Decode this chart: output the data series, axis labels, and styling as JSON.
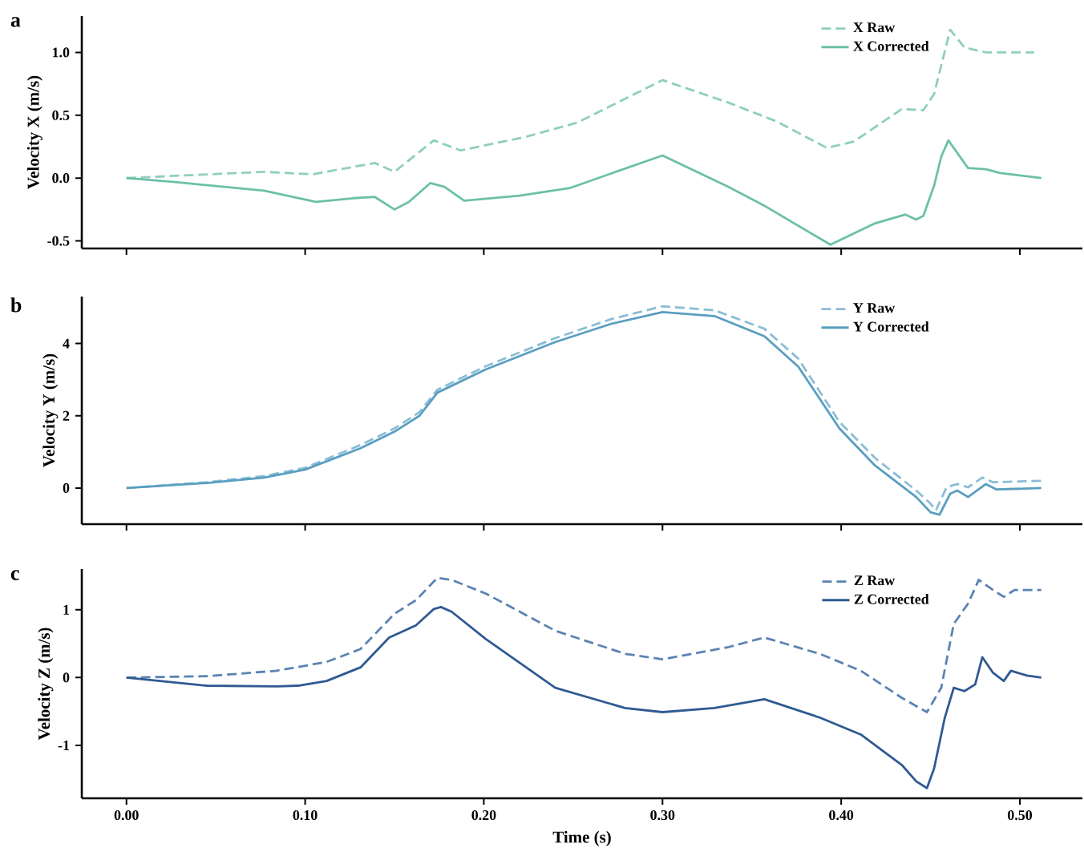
{
  "chart_data": [
    {
      "type": "line",
      "ylabel": "Velocity X (m/s)",
      "annotations": [
        "a"
      ],
      "legend": "top right",
      "tick_labels": "y",
      "xlim": [
        -0.025,
        0.535
      ],
      "ylim": [
        -0.56,
        1.29
      ],
      "xticks": [
        {
          "value": 0,
          "label": null
        },
        {
          "value": 0.1,
          "label": null
        },
        {
          "value": 0.2,
          "label": null
        },
        {
          "value": 0.3,
          "label": null
        },
        {
          "value": 0.4,
          "label": null
        },
        {
          "value": 0.5,
          "label": null
        }
      ],
      "yticks": [
        {
          "value": -0.5,
          "label": "-0.5"
        },
        {
          "value": 0,
          "label": "0.0"
        },
        {
          "value": 0.5,
          "label": "0.5"
        },
        {
          "value": 1,
          "label": "1.0"
        }
      ],
      "series": [
        {
          "name": "X Raw",
          "color": "#8fcfbd",
          "line_style": "dashed",
          "x": [
            0,
            0.077,
            0.104,
            0.139,
            0.15,
            0.172,
            0.187,
            0.224,
            0.252,
            0.3,
            0.337,
            0.364,
            0.392,
            0.407,
            0.434,
            0.446,
            0.452,
            0.461,
            0.469,
            0.481,
            0.508
          ],
          "values": [
            0,
            0.05,
            0.03,
            0.12,
            0.05,
            0.3,
            0.22,
            0.33,
            0.44,
            0.78,
            0.6,
            0.45,
            0.24,
            0.29,
            0.55,
            0.54,
            0.67,
            1.18,
            1.04,
            1.0,
            1.0
          ]
        },
        {
          "name": "X Corrected",
          "color": "#6cc0a8",
          "line_style": "solid",
          "x": [
            0,
            0.026,
            0.077,
            0.106,
            0.127,
            0.139,
            0.15,
            0.158,
            0.17,
            0.178,
            0.189,
            0.22,
            0.248,
            0.3,
            0.337,
            0.357,
            0.394,
            0.419,
            0.436,
            0.442,
            0.446,
            0.452,
            0.456,
            0.46,
            0.468,
            0.471,
            0.481,
            0.489,
            0.512
          ],
          "values": [
            0,
            -0.03,
            -0.1,
            -0.19,
            -0.16,
            -0.15,
            -0.25,
            -0.19,
            -0.04,
            -0.07,
            -0.18,
            -0.14,
            -0.08,
            0.18,
            -0.07,
            -0.22,
            -0.53,
            -0.36,
            -0.29,
            -0.33,
            -0.3,
            -0.06,
            0.17,
            0.3,
            0.14,
            0.08,
            0.07,
            0.04,
            0.0
          ]
        }
      ]
    },
    {
      "type": "line",
      "ylabel": "Velocity Y (m/s)",
      "annotations": [
        "b"
      ],
      "legend": "top right",
      "tick_labels": "y",
      "xlim": [
        -0.025,
        0.535
      ],
      "ylim": [
        -1,
        5.3
      ],
      "xticks": [
        {
          "value": 0,
          "label": null
        },
        {
          "value": 0.1,
          "label": null
        },
        {
          "value": 0.2,
          "label": null
        },
        {
          "value": 0.3,
          "label": null
        },
        {
          "value": 0.4,
          "label": null
        },
        {
          "value": 0.5,
          "label": null
        }
      ],
      "yticks": [
        0,
        2,
        4
      ],
      "series": [
        {
          "name": "Y Raw",
          "color": "#8bbdd6",
          "line_style": "dashed",
          "x": [
            0,
            0.045,
            0.077,
            0.1,
            0.131,
            0.15,
            0.164,
            0.174,
            0.201,
            0.24,
            0.271,
            0.3,
            0.329,
            0.357,
            0.376,
            0.399,
            0.419,
            0.442,
            0.45,
            0.453,
            0.459,
            0.465,
            0.471,
            0.479,
            0.485,
            0.512
          ],
          "values": [
            0,
            0.16,
            0.33,
            0.56,
            1.19,
            1.65,
            2.1,
            2.72,
            3.37,
            4.15,
            4.67,
            5.03,
            4.92,
            4.41,
            3.58,
            1.83,
            0.83,
            -0.07,
            -0.43,
            -0.62,
            0.02,
            0.11,
            0.02,
            0.29,
            0.16,
            0.2
          ]
        },
        {
          "name": "Y Corrected",
          "color": "#5a9ec0",
          "line_style": "solid",
          "x": [
            0,
            0.045,
            0.077,
            0.1,
            0.131,
            0.15,
            0.164,
            0.174,
            0.201,
            0.24,
            0.271,
            0.3,
            0.329,
            0.357,
            0.376,
            0.399,
            0.419,
            0.442,
            0.45,
            0.455,
            0.461,
            0.465,
            0.471,
            0.481,
            0.487,
            0.512
          ],
          "values": [
            0,
            0.14,
            0.29,
            0.51,
            1.1,
            1.56,
            2.0,
            2.64,
            3.28,
            4.04,
            4.54,
            4.87,
            4.76,
            4.2,
            3.36,
            1.65,
            0.62,
            -0.25,
            -0.67,
            -0.74,
            -0.16,
            -0.07,
            -0.25,
            0.11,
            -0.04,
            0.0
          ]
        }
      ]
    },
    {
      "type": "line",
      "xlabel": "Time (s)",
      "ylabel": "Velocity Z (m/s)",
      "annotations": [
        "c"
      ],
      "legend": "top right",
      "xlim": [
        -0.025,
        0.535
      ],
      "ylim": [
        -1.78,
        1.6
      ],
      "xticks": [
        {
          "value": 0,
          "label": "0.00"
        },
        {
          "value": 0.1,
          "label": "0.10"
        },
        {
          "value": 0.2,
          "label": "0.20"
        },
        {
          "value": 0.3,
          "label": "0.30"
        },
        {
          "value": 0.4,
          "label": "0.40"
        },
        {
          "value": 0.5,
          "label": "0.50"
        }
      ],
      "yticks": [
        -1,
        0,
        1
      ],
      "series": [
        {
          "name": "Z Raw",
          "color": "#5b83b3",
          "line_style": "dashed",
          "x": [
            0,
            0.045,
            0.084,
            0.112,
            0.131,
            0.15,
            0.162,
            0.174,
            0.182,
            0.201,
            0.24,
            0.279,
            0.3,
            0.337,
            0.357,
            0.388,
            0.411,
            0.434,
            0.448,
            0.456,
            0.463,
            0.471,
            0.477,
            0.485,
            0.491,
            0.497,
            0.512
          ],
          "values": [
            0,
            0.02,
            0.1,
            0.23,
            0.42,
            0.94,
            1.14,
            1.47,
            1.44,
            1.24,
            0.69,
            0.35,
            0.27,
            0.45,
            0.59,
            0.35,
            0.1,
            -0.3,
            -0.51,
            -0.15,
            0.79,
            1.09,
            1.44,
            1.29,
            1.19,
            1.29,
            1.29
          ]
        },
        {
          "name": "Z Corrected",
          "color": "#2f5a92",
          "line_style": "solid",
          "x": [
            0,
            0.045,
            0.084,
            0.096,
            0.112,
            0.131,
            0.147,
            0.162,
            0.172,
            0.176,
            0.182,
            0.201,
            0.24,
            0.279,
            0.3,
            0.329,
            0.357,
            0.388,
            0.411,
            0.434,
            0.442,
            0.448,
            0.452,
            0.458,
            0.463,
            0.469,
            0.475,
            0.479,
            0.485,
            0.491,
            0.495,
            0.504,
            0.512
          ],
          "values": [
            0,
            -0.12,
            -0.13,
            -0.12,
            -0.05,
            0.15,
            0.59,
            0.77,
            1.01,
            1.04,
            0.97,
            0.57,
            -0.15,
            -0.45,
            -0.51,
            -0.45,
            -0.32,
            -0.59,
            -0.84,
            -1.29,
            -1.53,
            -1.63,
            -1.34,
            -0.59,
            -0.15,
            -0.2,
            -0.1,
            0.3,
            0.07,
            -0.05,
            0.1,
            0.03,
            0.0
          ]
        }
      ]
    }
  ]
}
